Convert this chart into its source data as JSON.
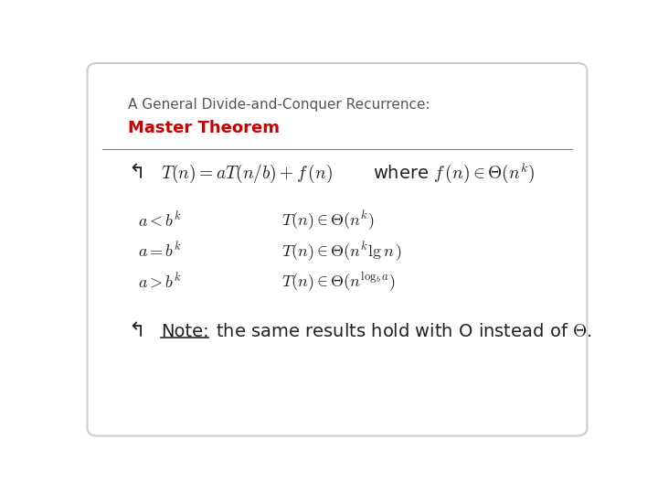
{
  "bg_color": "#ffffff",
  "border_color": "#cccccc",
  "title_line1": "A General Divide-and-Conquer Recurrence:",
  "title_line2": "Master Theorem",
  "title_line1_color": "#555555",
  "title_line2_color": "#cc0000",
  "separator_color": "#888888",
  "bullet_symbol": "↰",
  "main_formula": "$T(n) = aT(n/b) + f\\,(n)$",
  "where_text": "where $f\\,(n) \\in \\Theta(n^k)$",
  "case1_left": "$a < b^k$",
  "case1_right": "$T(n) \\in \\Theta(n^k)$",
  "case2_left": "$a = b^k$",
  "case2_right": "$T(n) \\in \\Theta(n^k \\lg n\\,)$",
  "case3_left": "$a > b^k$",
  "case3_right": "$T(n) \\in \\Theta(n^{\\log_b a})$",
  "note_rest": " the same results hold with O instead of $\\Theta$.",
  "note_underline": "Note:",
  "text_color": "#222222",
  "font_size_title1": 11,
  "font_size_title2": 13,
  "font_size_main": 14,
  "font_size_cases": 13,
  "font_size_note": 14
}
